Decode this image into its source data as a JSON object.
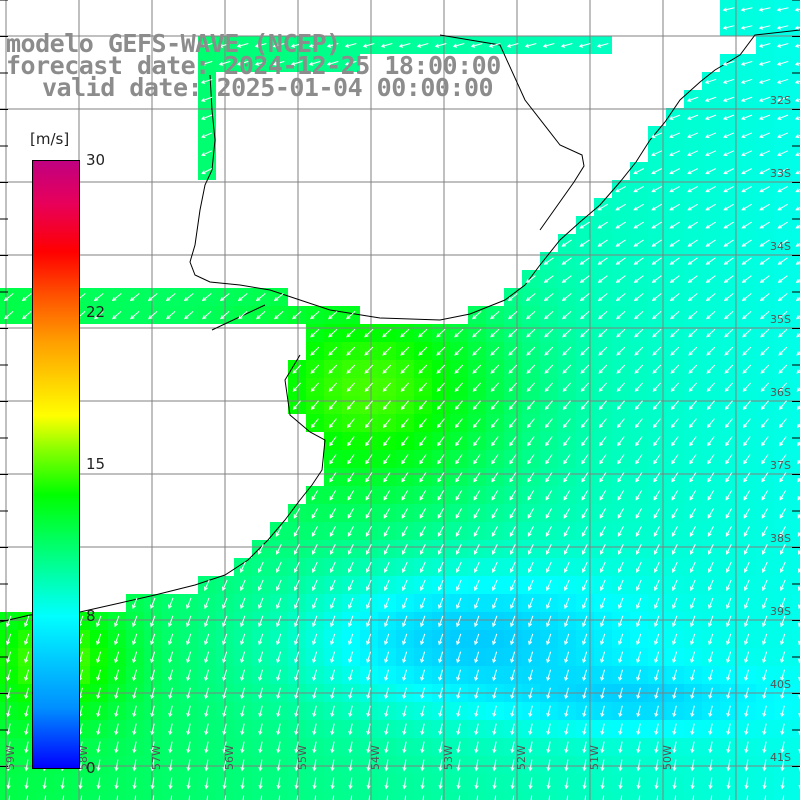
{
  "title": {
    "line1": "modelo GEFS-WAVE (NCEP)",
    "line2": "forecast date: 2024-12-25 18:00:00",
    "line3": "valid date: 2025-01-04 00:00:00"
  },
  "colorbar": {
    "unit": "[m/s]",
    "ticks": [
      "30",
      "22",
      "15",
      "8",
      "0"
    ],
    "range": [
      0,
      30
    ],
    "colors": [
      "#0000ff",
      "#0090ff",
      "#00ffff",
      "#00ff00",
      "#ffff00",
      "#ff6000",
      "#ff0000",
      "#c00080"
    ]
  },
  "map": {
    "lat_labels": [
      "32S",
      "33S",
      "34S",
      "35S",
      "36S",
      "37S",
      "38S",
      "39S",
      "40S",
      "41S"
    ],
    "lon_labels": [
      "59W",
      "58W",
      "57W",
      "56W",
      "55W",
      "54W",
      "53W",
      "52W",
      "51W",
      "50W"
    ],
    "land_color": "#ffffff",
    "grid_color": "#808080",
    "coast_color": "#000000",
    "arrow_color": "#ffffff"
  }
}
